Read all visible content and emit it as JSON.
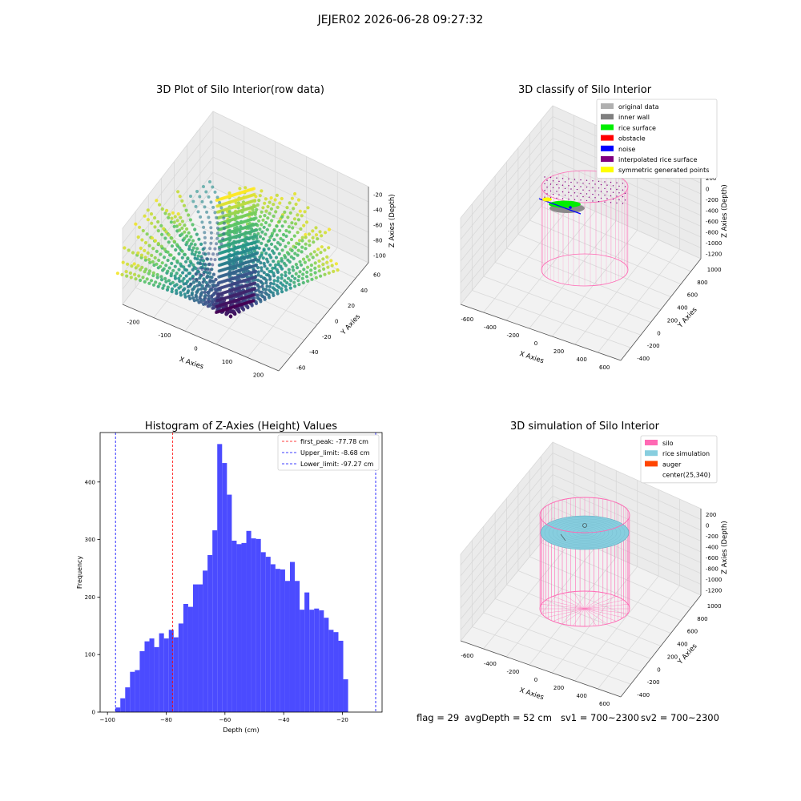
{
  "suptitle": "JEJER02 2026-06-28 09:27:32",
  "footer": {
    "flag": "flag = 29",
    "avg_depth": "avgDepth = 52 cm",
    "sv1": "sv1 = 700~2300",
    "sv2": "sv2 = 700~2300"
  },
  "colors": {
    "original": "#b0b0b0",
    "inner_wall": "#808080",
    "rice_surface": "#00ee00",
    "obstacle": "#ff0000",
    "noise": "#0000ff",
    "interpolated": "#800080",
    "symmetric": "#ffff00",
    "silo": "#ff69b4",
    "rice_sim": "#87cedf",
    "auger": "#ff4500",
    "hist_bar": "#4b4bff"
  },
  "chart_data": [
    {
      "type": "scatter",
      "title": "3D Plot of Silo Interior(row data)",
      "xlabel": "X Axies",
      "ylabel": "Y Axies",
      "zlabel": "Z Axies (Depth)",
      "x_ticks": [
        "-200",
        "-100",
        "0",
        "100",
        "200"
      ],
      "y_ticks": [
        "-60",
        "-40",
        "-20",
        "0",
        "20",
        "40",
        "60"
      ],
      "z_ticks": [
        "-20",
        "-40",
        "-60",
        "-80",
        "-100"
      ],
      "colormap": "viridis"
    },
    {
      "type": "scatter",
      "title": "3D classify of Silo Interior",
      "xlabel": "X Axies",
      "ylabel": "Y Axies",
      "zlabel": "Z Axies (Depth)",
      "x_ticks": [
        "-600",
        "-400",
        "-200",
        "0",
        "200",
        "400",
        "600"
      ],
      "y_ticks": [
        "-400",
        "-200",
        "0",
        "200",
        "400",
        "600",
        "800",
        "1000"
      ],
      "z_ticks": [
        "200",
        "0",
        "-200",
        "-400",
        "-600",
        "-800",
        "-1000",
        "-1200"
      ],
      "legend": [
        "original data",
        "inner wall",
        "rice surface",
        "obstacle",
        "noise",
        "interpolated rice surface",
        "symmetric generated points"
      ],
      "legend_position": "top-right"
    },
    {
      "type": "bar",
      "title": "Histogram of Z-Axies (Height) Values",
      "xlabel": "Depth (cm)",
      "ylabel": "Frequency",
      "xlim": [
        -102.5,
        -6.5
      ],
      "ylim": [
        0,
        486
      ],
      "x_ticks": [
        -100,
        -80,
        -60,
        -40,
        -20
      ],
      "y_ticks": [
        0,
        100,
        200,
        300,
        400
      ],
      "bin_width": 1.65,
      "bin_start": -97.27,
      "values": [
        8,
        24,
        43,
        70,
        73,
        106,
        123,
        128,
        113,
        137,
        128,
        143,
        130,
        154,
        188,
        183,
        222,
        222,
        246,
        273,
        316,
        466,
        433,
        378,
        298,
        292,
        294,
        315,
        302,
        301,
        278,
        270,
        257,
        249,
        248,
        228,
        261,
        228,
        178,
        208,
        178,
        180,
        177,
        164,
        143,
        139,
        124,
        57
      ],
      "vlines": [
        {
          "label": "first_peak: -77.78 cm",
          "x": -77.78,
          "color": "#ff0000"
        },
        {
          "label": "Upper_limit: -8.68 cm",
          "x": -8.68,
          "color": "#0000ff"
        },
        {
          "label": "Lower_limit: -97.27 cm",
          "x": -97.27,
          "color": "#0000ff"
        }
      ],
      "legend_position": "top-right"
    },
    {
      "type": "scatter",
      "title": "3D simulation of Silo Interior",
      "xlabel": "X Axies",
      "ylabel": "Y Axies",
      "zlabel": "Z Axies (Depth)",
      "x_ticks": [
        "-600",
        "-400",
        "-200",
        "0",
        "200",
        "400",
        "600"
      ],
      "y_ticks": [
        "-400",
        "-200",
        "0",
        "200",
        "400",
        "600",
        "800",
        "1000"
      ],
      "z_ticks": [
        "200",
        "0",
        "-200",
        "-400",
        "-600",
        "-800",
        "-1000",
        "-1200"
      ],
      "legend": [
        "silo",
        "rice simulation",
        "auger",
        "center(25,340)"
      ],
      "legend_position": "top-right"
    }
  ]
}
